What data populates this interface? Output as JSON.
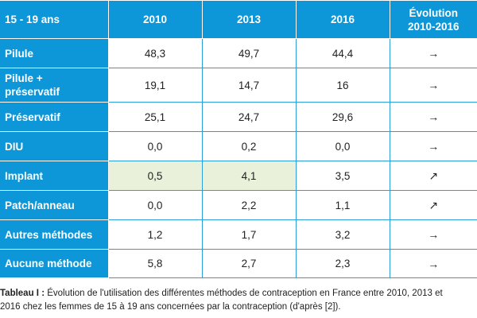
{
  "table": {
    "header": {
      "corner": "15 - 19 ans",
      "years": [
        "2010",
        "2013",
        "2016"
      ],
      "evolution_line1": "Évolution",
      "evolution_line2": "2010-2016"
    },
    "rows": [
      {
        "method": "Pilule",
        "v2010": "48,3",
        "v2013": "49,7",
        "v2016": "44,4",
        "trend": "→",
        "trend_icon": "arrow-right-icon"
      },
      {
        "method_line1": "Pilule +",
        "method_line2": "préservatif",
        "v2010": "19,1",
        "v2013": "14,7",
        "v2016": "16",
        "trend": "→",
        "trend_icon": "arrow-right-icon"
      },
      {
        "method": "Préservatif",
        "v2010": "25,1",
        "v2013": "24,7",
        "v2016": "29,6",
        "trend": "→",
        "trend_icon": "arrow-right-icon"
      },
      {
        "method": "DIU",
        "v2010": "0,0",
        "v2013": "0,2",
        "v2016": "0,0",
        "trend": "→",
        "trend_icon": "arrow-right-icon"
      },
      {
        "method": "Implant",
        "v2010": "0,5",
        "v2013": "4,1",
        "v2016": "3,5",
        "trend": "↗",
        "trend_icon": "arrow-up-right-icon"
      },
      {
        "method": "Patch/anneau",
        "v2010": "0,0",
        "v2013": "2,2",
        "v2016": "1,1",
        "trend": "↗",
        "trend_icon": "arrow-up-right-icon"
      },
      {
        "method": "Autres méthodes",
        "v2010": "1,2",
        "v2013": "1,7",
        "v2016": "3,2",
        "trend": "→",
        "trend_icon": "arrow-right-icon"
      },
      {
        "method": "Aucune méthode",
        "v2010": "5,8",
        "v2013": "2,7",
        "v2016": "2,3",
        "trend": "→",
        "trend_icon": "arrow-right-icon"
      }
    ]
  },
  "caption": {
    "label": "Tableau I :",
    "line1": " Évolution de l'utilisation des différentes méthodes de contraception en France entre 2010, 2013 et",
    "line2": "2016 chez les femmes de 15 à 19 ans concernées par la contraception (d'après [2])."
  },
  "colors": {
    "header_bg": "#0d97d8",
    "border": "#2b9fd9",
    "highlight": "#e9f1da"
  }
}
